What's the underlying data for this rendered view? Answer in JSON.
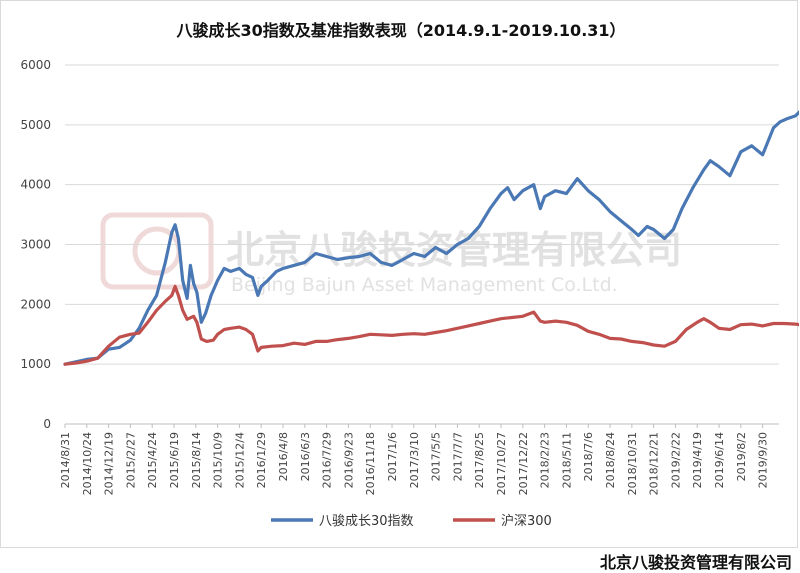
{
  "chart_data": {
    "type": "line",
    "title": "八骏成长30指数及基准指数表现（2014.9.1-2019.10.31）",
    "ylim": [
      0,
      6000
    ],
    "y_ticks": [
      0,
      1000,
      2000,
      3000,
      4000,
      5000,
      6000
    ],
    "x_tick_labels": [
      "2014/8/31",
      "2014/10/24",
      "2014/12/19",
      "2015/2/27",
      "2015/4/24",
      "2015/6/19",
      "2015/8/14",
      "2015/10/9",
      "2015/12/4",
      "2016/1/29",
      "2016/4/8",
      "2016/6/3",
      "2016/7/29",
      "2016/9/23",
      "2016/11/18",
      "2017/1/6",
      "2017/3/10",
      "2017/5/5",
      "2017/7/7",
      "2017/8/25",
      "2017/10/27",
      "2017/12/22",
      "2018/2/23",
      "2018/5/11",
      "2018/7/6",
      "2018/8/24",
      "2018/10/31",
      "2018/12/21",
      "2019/2/22",
      "2019/4/19",
      "2019/6/14",
      "2019/8/2",
      "2019/9/30"
    ],
    "grid": "horizontal",
    "legend_position": "bottom",
    "series": [
      {
        "name": "八骏成长30指数",
        "color": "#4a78b5",
        "points": [
          [
            0,
            1000
          ],
          [
            0.5,
            1040
          ],
          [
            1,
            1080
          ],
          [
            1.5,
            1100
          ],
          [
            2,
            1250
          ],
          [
            2.5,
            1280
          ],
          [
            3,
            1400
          ],
          [
            3.4,
            1600
          ],
          [
            3.8,
            1900
          ],
          [
            4.2,
            2150
          ],
          [
            4.6,
            2700
          ],
          [
            4.9,
            3200
          ],
          [
            5.05,
            3330
          ],
          [
            5.2,
            3100
          ],
          [
            5.4,
            2400
          ],
          [
            5.6,
            2100
          ],
          [
            5.75,
            2650
          ],
          [
            5.9,
            2350
          ],
          [
            6.05,
            2200
          ],
          [
            6.25,
            1700
          ],
          [
            6.45,
            1850
          ],
          [
            6.7,
            2150
          ],
          [
            7.0,
            2400
          ],
          [
            7.3,
            2600
          ],
          [
            7.6,
            2550
          ],
          [
            8.0,
            2600
          ],
          [
            8.3,
            2500
          ],
          [
            8.6,
            2450
          ],
          [
            8.85,
            2150
          ],
          [
            9.0,
            2300
          ],
          [
            9.3,
            2400
          ],
          [
            9.7,
            2550
          ],
          [
            10.0,
            2600
          ],
          [
            10.5,
            2650
          ],
          [
            11.0,
            2700
          ],
          [
            11.5,
            2850
          ],
          [
            12.0,
            2800
          ],
          [
            12.5,
            2750
          ],
          [
            13.0,
            2780
          ],
          [
            13.5,
            2800
          ],
          [
            14.0,
            2850
          ],
          [
            14.5,
            2700
          ],
          [
            15.0,
            2650
          ],
          [
            15.5,
            2750
          ],
          [
            16.0,
            2850
          ],
          [
            16.5,
            2800
          ],
          [
            17.0,
            2950
          ],
          [
            17.5,
            2850
          ],
          [
            18.0,
            3000
          ],
          [
            18.5,
            3100
          ],
          [
            19.0,
            3300
          ],
          [
            19.5,
            3600
          ],
          [
            20.0,
            3850
          ],
          [
            20.3,
            3950
          ],
          [
            20.6,
            3750
          ],
          [
            21.0,
            3900
          ],
          [
            21.5,
            4000
          ],
          [
            21.8,
            3600
          ],
          [
            22.0,
            3800
          ],
          [
            22.5,
            3900
          ],
          [
            23.0,
            3850
          ],
          [
            23.5,
            4100
          ],
          [
            24.0,
            3900
          ],
          [
            24.5,
            3750
          ],
          [
            25.0,
            3550
          ],
          [
            25.5,
            3400
          ],
          [
            26.0,
            3250
          ],
          [
            26.3,
            3150
          ],
          [
            26.7,
            3300
          ],
          [
            27.0,
            3250
          ],
          [
            27.5,
            3100
          ],
          [
            27.9,
            3250
          ],
          [
            28.3,
            3600
          ],
          [
            28.8,
            3950
          ],
          [
            29.3,
            4250
          ],
          [
            29.6,
            4400
          ],
          [
            30.0,
            4300
          ],
          [
            30.5,
            4150
          ],
          [
            31.0,
            4550
          ],
          [
            31.5,
            4650
          ],
          [
            32.0,
            4500
          ],
          [
            32.5,
            4950
          ],
          [
            32.8,
            5050
          ],
          [
            33.1,
            5100
          ],
          [
            33.5,
            5150
          ],
          [
            33.7,
            5220
          ]
        ]
      },
      {
        "name": "沪深300",
        "color": "#c0504d",
        "points": [
          [
            0,
            1000
          ],
          [
            0.5,
            1020
          ],
          [
            1,
            1050
          ],
          [
            1.5,
            1100
          ],
          [
            2,
            1300
          ],
          [
            2.5,
            1450
          ],
          [
            3,
            1500
          ],
          [
            3.4,
            1520
          ],
          [
            3.8,
            1700
          ],
          [
            4.2,
            1900
          ],
          [
            4.6,
            2050
          ],
          [
            4.9,
            2150
          ],
          [
            5.05,
            2300
          ],
          [
            5.2,
            2150
          ],
          [
            5.4,
            1900
          ],
          [
            5.6,
            1750
          ],
          [
            5.9,
            1800
          ],
          [
            6.05,
            1700
          ],
          [
            6.25,
            1420
          ],
          [
            6.5,
            1380
          ],
          [
            6.8,
            1400
          ],
          [
            7.0,
            1500
          ],
          [
            7.3,
            1580
          ],
          [
            7.6,
            1600
          ],
          [
            8.0,
            1620
          ],
          [
            8.3,
            1580
          ],
          [
            8.6,
            1500
          ],
          [
            8.85,
            1220
          ],
          [
            9.0,
            1280
          ],
          [
            9.5,
            1300
          ],
          [
            10.0,
            1310
          ],
          [
            10.5,
            1350
          ],
          [
            11.0,
            1330
          ],
          [
            11.5,
            1380
          ],
          [
            12.0,
            1380
          ],
          [
            12.5,
            1410
          ],
          [
            13.0,
            1430
          ],
          [
            13.5,
            1460
          ],
          [
            14.0,
            1500
          ],
          [
            14.5,
            1490
          ],
          [
            15.0,
            1480
          ],
          [
            15.5,
            1500
          ],
          [
            16.0,
            1510
          ],
          [
            16.5,
            1500
          ],
          [
            17.0,
            1530
          ],
          [
            17.5,
            1560
          ],
          [
            18.0,
            1600
          ],
          [
            18.5,
            1640
          ],
          [
            19.0,
            1680
          ],
          [
            19.5,
            1720
          ],
          [
            20.0,
            1760
          ],
          [
            20.5,
            1780
          ],
          [
            21.0,
            1800
          ],
          [
            21.5,
            1870
          ],
          [
            21.8,
            1720
          ],
          [
            22.0,
            1700
          ],
          [
            22.5,
            1720
          ],
          [
            23.0,
            1700
          ],
          [
            23.5,
            1650
          ],
          [
            24.0,
            1550
          ],
          [
            24.5,
            1500
          ],
          [
            25.0,
            1430
          ],
          [
            25.5,
            1420
          ],
          [
            26.0,
            1380
          ],
          [
            26.5,
            1360
          ],
          [
            27.0,
            1320
          ],
          [
            27.5,
            1300
          ],
          [
            28.0,
            1380
          ],
          [
            28.5,
            1580
          ],
          [
            29.0,
            1700
          ],
          [
            29.3,
            1760
          ],
          [
            29.6,
            1700
          ],
          [
            30.0,
            1600
          ],
          [
            30.5,
            1580
          ],
          [
            31.0,
            1660
          ],
          [
            31.5,
            1670
          ],
          [
            32.0,
            1640
          ],
          [
            32.5,
            1680
          ],
          [
            33.0,
            1680
          ],
          [
            33.5,
            1670
          ],
          [
            33.7,
            1660
          ]
        ]
      }
    ]
  },
  "watermark": {
    "text_cn": "北京八骏投资管理有限公司",
    "text_en": "Beijing Bajun Asset Management Co.Ltd."
  },
  "footer": {
    "company": "北京八骏投资管理有限公司"
  }
}
